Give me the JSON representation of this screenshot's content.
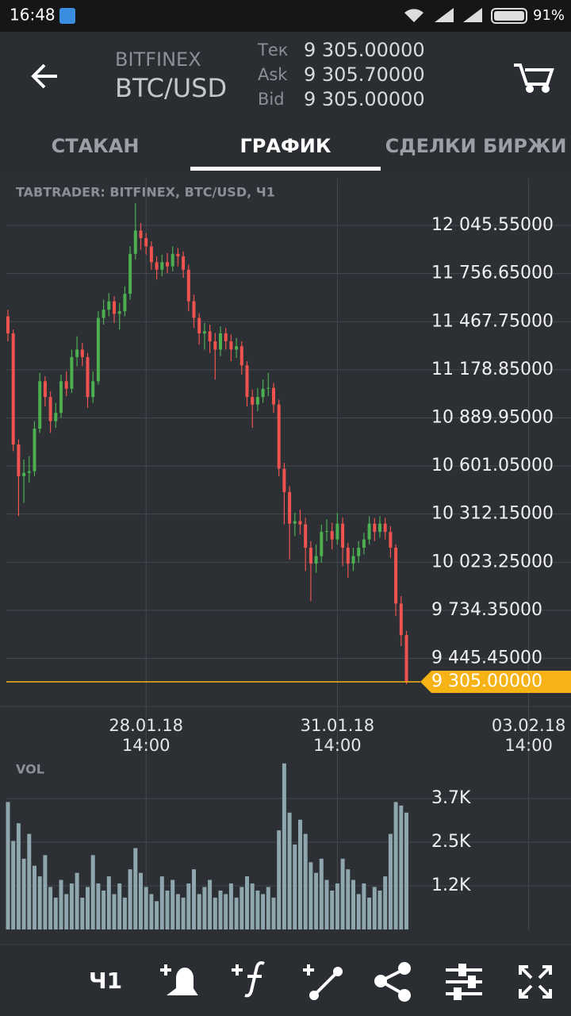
{
  "status_bar": {
    "time": "16:48",
    "battery": "91%"
  },
  "header": {
    "exchange": "BITFINEX",
    "pair": "BTC/USD",
    "quotes": [
      {
        "label": "Тек",
        "value": "9 305.00000"
      },
      {
        "label": "Ask",
        "value": "9 305.70000"
      },
      {
        "label": "Bid",
        "value": "9 305.00000"
      }
    ]
  },
  "tabs": [
    "СТАКАН",
    "ГРАФИК",
    "СДЕЛКИ БИРЖИ"
  ],
  "active_tab": 1,
  "chart_data": [
    {
      "type": "candlestick",
      "title": "TABTRADER: BITFINEX, BTC/USD, Ч1",
      "categories": [
        null,
        null,
        null,
        null,
        null,
        null,
        null,
        null,
        null,
        null,
        null,
        null,
        null,
        null,
        null,
        null,
        null,
        null,
        null,
        null,
        null,
        null,
        null,
        null,
        null,
        null,
        "28.01.18\n14:00",
        null,
        null,
        null,
        null,
        null,
        null,
        null,
        null,
        null,
        null,
        null,
        null,
        null,
        null,
        null,
        null,
        null,
        null,
        null,
        null,
        null,
        null,
        null,
        null,
        null,
        null,
        null,
        null,
        null,
        null,
        null,
        null,
        null,
        null,
        null,
        "31.01.18\n14:00",
        null,
        null,
        null,
        null,
        null,
        null,
        null,
        null,
        null,
        null,
        null,
        null,
        null,
        null,
        null,
        null,
        null,
        null,
        null,
        null,
        null,
        null,
        null,
        null,
        null,
        null,
        null,
        null,
        null,
        null,
        null,
        null,
        null,
        null,
        null,
        "03.02.18\n14:00"
      ],
      "open": [
        11500,
        11397,
        10730,
        10540,
        10560,
        10570,
        10825,
        11110,
        11015,
        10870,
        10920,
        11110,
        11065,
        11255,
        11300,
        11255,
        11015,
        11110,
        11490,
        11540,
        11590,
        11515,
        11530,
        11635,
        11875,
        12015,
        11970,
        11920,
        11825,
        11780,
        11825,
        11800,
        11875,
        11860,
        11780,
        11590,
        11490,
        11397,
        11410,
        11350,
        11300,
        11397,
        11350,
        11300,
        11320,
        11205,
        11015,
        10970,
        11015,
        11065,
        11070,
        10970,
        10585,
        10445,
        10255,
        10270,
        10250,
        10110,
        10015,
        10060,
        10205,
        10210,
        10160,
        10255,
        10110,
        10015,
        10060,
        10110,
        10160,
        10255,
        10205,
        10255,
        10205,
        10110,
        9775,
        9585,
        null,
        null,
        null,
        null,
        null,
        null,
        null,
        null,
        null,
        null,
        null,
        null,
        null,
        null,
        null,
        null,
        null,
        null,
        null,
        null,
        null,
        null,
        null
      ],
      "high": [
        11540,
        11420,
        10760,
        10640,
        10660,
        10870,
        11160,
        11140,
        11050,
        10980,
        11150,
        11170,
        11300,
        11380,
        11340,
        11280,
        11170,
        11530,
        11600,
        11640,
        11620,
        11580,
        11680,
        11920,
        12180,
        12060,
        12000,
        11950,
        11860,
        11870,
        11880,
        11920,
        11910,
        11890,
        11810,
        11630,
        11520,
        11460,
        11450,
        11400,
        11440,
        11430,
        11390,
        11370,
        11350,
        11230,
        11060,
        11070,
        11120,
        11160,
        11100,
        11000,
        10620,
        10480,
        10320,
        10340,
        10290,
        10150,
        10130,
        10250,
        10280,
        10260,
        10320,
        10290,
        10140,
        10110,
        10150,
        10200,
        10300,
        10290,
        10300,
        10290,
        10240,
        10130,
        9820,
        9610,
        null,
        null,
        null,
        null,
        null,
        null,
        null,
        null,
        null,
        null,
        null,
        null,
        null,
        null,
        null,
        null,
        null,
        null,
        null,
        null,
        null,
        null,
        null
      ],
      "low": [
        11350,
        10690,
        10300,
        10380,
        10500,
        10540,
        10800,
        10960,
        10800,
        10830,
        10890,
        11020,
        11040,
        11200,
        11200,
        10950,
        10980,
        11090,
        11450,
        11500,
        11460,
        11420,
        11500,
        11600,
        11840,
        11900,
        11870,
        11780,
        11720,
        11740,
        11760,
        11770,
        11800,
        11730,
        11530,
        11430,
        11330,
        11300,
        11280,
        11120,
        11260,
        11300,
        11230,
        11250,
        11150,
        10960,
        10830,
        10930,
        10980,
        11020,
        10920,
        10540,
        10250,
        10040,
        10180,
        10190,
        9970,
        9790,
        9960,
        10020,
        10150,
        10100,
        10130,
        10000,
        9930,
        9970,
        10020,
        10070,
        10130,
        10150,
        10170,
        10160,
        10050,
        9700,
        9520,
        9290,
        null,
        null,
        null,
        null,
        null,
        null,
        null,
        null,
        null,
        null,
        null,
        null,
        null,
        null,
        null,
        null,
        null,
        null,
        null,
        null,
        null,
        null,
        null
      ],
      "close": [
        11397,
        10730,
        10540,
        10560,
        10570,
        10825,
        11110,
        11015,
        10870,
        10920,
        11110,
        11065,
        11255,
        11300,
        11255,
        11015,
        11110,
        11490,
        11540,
        11590,
        11515,
        11530,
        11635,
        11875,
        12015,
        11970,
        11920,
        11825,
        11780,
        11825,
        11800,
        11875,
        11860,
        11780,
        11590,
        11490,
        11397,
        11410,
        11350,
        11300,
        11397,
        11350,
        11300,
        11320,
        11205,
        11015,
        10970,
        11015,
        11065,
        11070,
        10970,
        10585,
        10445,
        10255,
        10270,
        10250,
        10110,
        10015,
        10060,
        10205,
        10210,
        10160,
        10255,
        10110,
        10015,
        10060,
        10110,
        10160,
        10255,
        10205,
        10255,
        10205,
        10110,
        9775,
        9585,
        9305,
        null,
        null,
        null,
        null,
        null,
        null,
        null,
        null,
        null,
        null,
        null,
        null,
        null,
        null,
        null,
        null,
        null,
        null,
        null,
        null,
        null,
        null,
        null
      ],
      "up_color": "#4caf50",
      "down_color": "#ef5350",
      "grid": true,
      "ylim": [
        9157,
        12327
      ],
      "yticks": [
        {
          "value": 9445.45,
          "label": "9 445.45000"
        },
        {
          "value": 9734.35,
          "label": "9 734.35000"
        },
        {
          "value": 10023.25,
          "label": "10 023.25000"
        },
        {
          "value": 10312.15,
          "label": "10 312.15000"
        },
        {
          "value": 10601.05,
          "label": "10 601.05000"
        },
        {
          "value": 10889.95,
          "label": "10 889.95000"
        },
        {
          "value": 11178.85,
          "label": "11 178.85000"
        },
        {
          "value": 11467.75,
          "label": "11 467.75000"
        },
        {
          "value": 11756.65,
          "label": "11 756.65000"
        },
        {
          "value": 12045.55,
          "label": "12 045.55000"
        }
      ],
      "last_price": {
        "value": 9305,
        "label": "9 305.00000",
        "color": "#f5b316"
      }
    },
    {
      "type": "bar",
      "title": "VOL",
      "color": "#8ea6ad",
      "grid": true,
      "values": [
        3600,
        2500,
        3000,
        2000,
        2700,
        1800,
        1500,
        2100,
        1200,
        900,
        1400,
        1000,
        1300,
        1600,
        900,
        1200,
        2100,
        1300,
        1100,
        1500,
        1000,
        1300,
        900,
        1700,
        2300,
        1600,
        1200,
        1000,
        800,
        1500,
        1100,
        1400,
        1000,
        900,
        1300,
        1700,
        1000,
        1200,
        1400,
        900,
        1100,
        1000,
        1300,
        900,
        1200,
        1500,
        1300,
        1100,
        1000,
        1200,
        900,
        2800,
        4690,
        3300,
        2400,
        3100,
        2700,
        1900,
        1600,
        2000,
        1400,
        1100,
        1300,
        2000,
        1700,
        1400,
        1000,
        1300,
        900,
        1200,
        1100,
        1500,
        2700,
        3600,
        3500,
        3300
      ],
      "ylim": [
        0,
        4730
      ],
      "yticks": [
        {
          "value": 1233,
          "label": "1.2K"
        },
        {
          "value": 2467,
          "label": "2.5K"
        },
        {
          "value": 3700,
          "label": "3.7K"
        }
      ]
    }
  ],
  "toolbar": {
    "timeframe": "Ч1"
  }
}
